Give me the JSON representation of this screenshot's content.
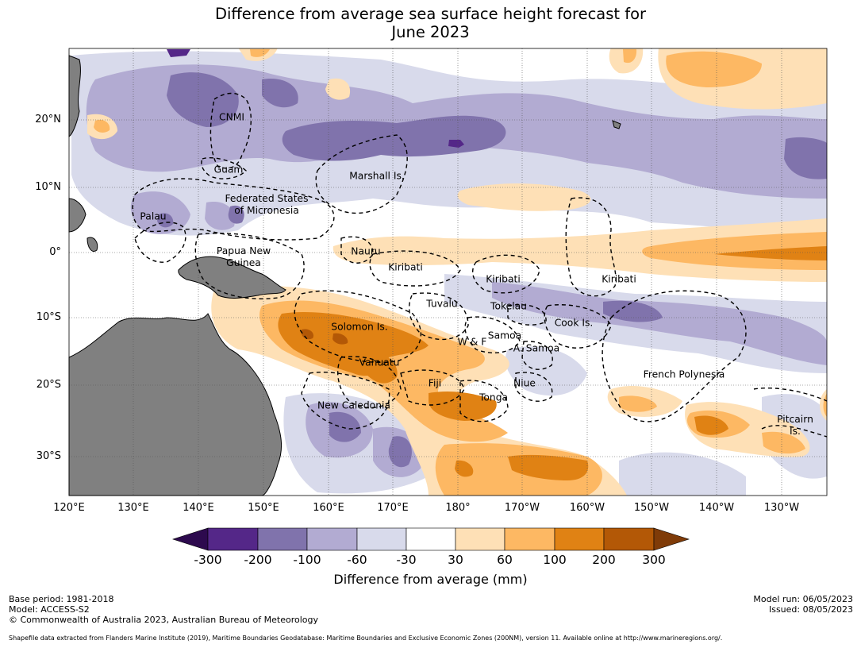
{
  "title": {
    "line1": "Difference from average sea surface height forecast for",
    "line2": "June 2023"
  },
  "axes": {
    "lat_labels": [
      "20°N",
      "10°N",
      "0°",
      "10°S",
      "20°S",
      "30°S"
    ],
    "lon_labels": [
      "120°E",
      "130°E",
      "140°E",
      "150°E",
      "160°E",
      "170°E",
      "180°",
      "170°W",
      "160°W",
      "150°W",
      "140°W",
      "130°W"
    ]
  },
  "places": [
    {
      "name": "CNMI",
      "label": "CNMI"
    },
    {
      "name": "Guam",
      "label": "Guam"
    },
    {
      "name": "Marshall Is.",
      "label": "Marshall Is."
    },
    {
      "name": "Federated States of Micronesia",
      "label": "Federated States\nof Micronesia"
    },
    {
      "name": "Palau",
      "label": "Palau"
    },
    {
      "name": "Papua New Guinea",
      "label": "Papua New\nGuinea"
    },
    {
      "name": "Nauru",
      "label": "Nauru"
    },
    {
      "name": "Kiribati (west)",
      "label": "Kiribati"
    },
    {
      "name": "Kiribati (central)",
      "label": "Kiribati"
    },
    {
      "name": "Kiribati (east)",
      "label": "Kiribati"
    },
    {
      "name": "Tuvalu",
      "label": "Tuvalu"
    },
    {
      "name": "Tokelau",
      "label": "Tokelau"
    },
    {
      "name": "Solomon Is.",
      "label": "Solomon Is."
    },
    {
      "name": "Cook Is.",
      "label": "Cook Is."
    },
    {
      "name": "Samoa",
      "label": "Samoa"
    },
    {
      "name": "W & F",
      "label": "W & F"
    },
    {
      "name": "A. Samoa",
      "label": "A. Samoa"
    },
    {
      "name": "Vanuatu",
      "label": "Vanuatu"
    },
    {
      "name": "Fiji",
      "label": "Fiji"
    },
    {
      "name": "Niue",
      "label": "Niue"
    },
    {
      "name": "French Polynesia",
      "label": "French Polynesia"
    },
    {
      "name": "Tonga",
      "label": "Tonga"
    },
    {
      "name": "New Caledonia",
      "label": "New Caledonia"
    },
    {
      "name": "Pitcairn Is.",
      "label": "Pitcairn\nIs."
    }
  ],
  "colorbar": {
    "title": "Difference from average (mm)",
    "ticks": [
      "-300",
      "-200",
      "-100",
      "-60",
      "-30",
      "30",
      "60",
      "100",
      "200",
      "300"
    ],
    "colors": [
      "#2d0a4e",
      "#542788",
      "#8073ac",
      "#b2abd2",
      "#d8daeb",
      "#ffffff",
      "#fee0b6",
      "#fdb863",
      "#e08214",
      "#b35806",
      "#7f3b08"
    ]
  },
  "meta": {
    "base_period": "Base period: 1981-2018",
    "model": "Model: ACCESS-S2",
    "copyright": "© Commonwealth of Australia 2023, Australian Bureau of Meteorology",
    "model_run": "Model run: 06/05/2023",
    "issued": "Issued: 08/05/2023",
    "footnote": "Shapefile data extracted from Flanders Marine Institute (2019), Maritime Boundaries Geodatabase: Maritime Boundaries and Exclusive Economic Zones (200NM), version 11. Available online at http://www.marineregions.org/."
  },
  "style": {
    "land": "#808080",
    "gridline": "#555555"
  }
}
